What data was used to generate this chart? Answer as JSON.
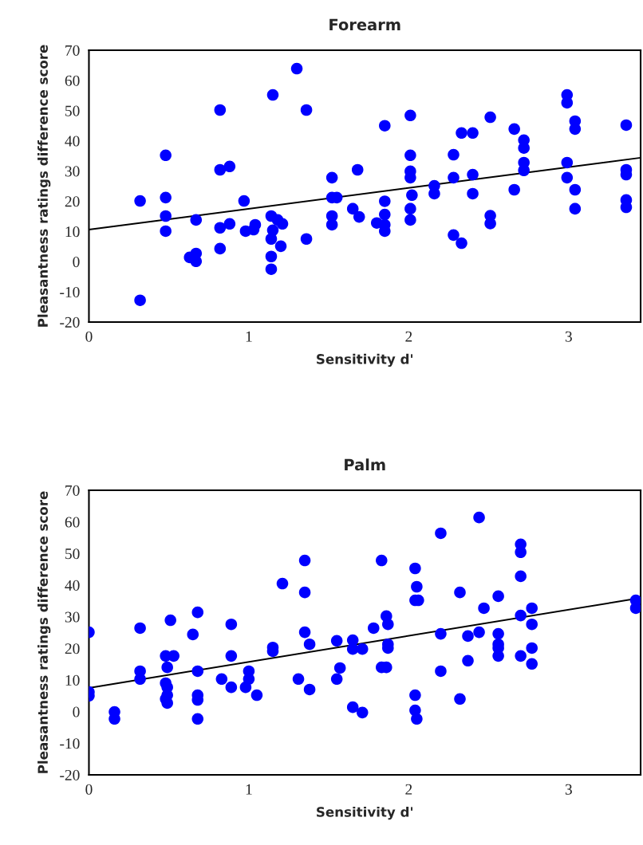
{
  "chart_data": [
    {
      "type": "scatter",
      "title": "Forearm",
      "xlabel": "Sensitivity d'",
      "ylabel": "Pleasantness ratings difference score",
      "xlim": [
        0,
        3.45
      ],
      "xticks": [
        0,
        1,
        2,
        3
      ],
      "ylim": [
        -20,
        70
      ],
      "yticks": [
        -20,
        -10,
        0,
        10,
        20,
        30,
        40,
        50,
        60,
        70
      ],
      "series": [
        {
          "marker": "circle",
          "color": "#0000ff",
          "x": [
            0.32,
            0.32,
            0.48,
            0.48,
            0.48,
            0.48,
            0.63,
            0.67,
            0.67,
            0.67,
            0.82,
            0.82,
            0.88,
            0.82,
            0.88,
            0.82,
            0.97,
            0.98,
            1.04,
            1.03,
            1.15,
            1.3,
            1.36,
            1.14,
            1.18,
            1.21,
            1.15,
            1.14,
            1.2,
            1.14,
            1.14,
            1.36,
            1.52,
            1.52,
            1.55,
            1.52,
            1.52,
            1.68,
            1.65,
            1.69,
            1.85,
            1.85,
            1.85,
            1.8,
            1.85,
            1.85,
            2.01,
            2.01,
            2.01,
            2.01,
            2.02,
            2.01,
            2.01,
            2.16,
            2.16,
            2.28,
            2.28,
            2.28,
            2.33,
            2.33,
            2.4,
            2.4,
            2.4,
            2.51,
            2.51,
            2.51,
            2.66,
            2.66,
            2.72,
            2.72,
            2.72,
            2.72,
            2.99,
            2.99,
            2.99,
            2.99,
            3.04,
            3.04,
            3.04,
            3.04,
            3.36,
            3.36,
            3.36,
            3.36,
            3.36
          ],
          "values": [
            20.1,
            -12.8,
            35.2,
            21.2,
            15.1,
            10.1,
            1.4,
            2.7,
            0.1,
            13.8,
            50.2,
            30.4,
            31.5,
            11.2,
            12.5,
            4.3,
            20.1,
            10.1,
            12.2,
            10.6,
            55.2,
            63.9,
            50.2,
            15.1,
            13.8,
            12.5,
            10.4,
            7.5,
            5.1,
            1.7,
            -2.5,
            7.5,
            27.8,
            21.2,
            21.2,
            15.1,
            12.2,
            30.4,
            17.5,
            14.8,
            45,
            20,
            15.6,
            12.8,
            12.2,
            10.1,
            48.4,
            35.2,
            29.9,
            27.8,
            22,
            17.5,
            13.8,
            25.1,
            22.5,
            35.4,
            27.8,
            8.8,
            6.1,
            42.6,
            42.6,
            28.8,
            22.5,
            47.8,
            15.2,
            12.6,
            43.9,
            23.8,
            40.2,
            37.6,
            32.8,
            30.2,
            55.2,
            52.6,
            32.8,
            27.8,
            46.5,
            43.9,
            23.8,
            17.5,
            45.2,
            30.4,
            28.8,
            20.4,
            18
          ]
        },
        {
          "type": "line",
          "marker": "none",
          "color": "#000000",
          "x": [
            0,
            3.45
          ],
          "values": [
            10.6,
            34.4
          ]
        }
      ]
    },
    {
      "type": "scatter",
      "title": "Palm",
      "xlabel": "Sensitivity d'",
      "ylabel": "Pleasantness ratings difference score",
      "xlim": [
        0,
        3.45
      ],
      "xticks": [
        0,
        1,
        2,
        3
      ],
      "ylim": [
        -20,
        70
      ],
      "yticks": [
        -20,
        -10,
        0,
        10,
        20,
        30,
        40,
        50,
        60,
        70
      ],
      "series": [
        {
          "marker": "circle",
          "color": "#0000ff",
          "x": [
            0,
            0,
            0,
            0.16,
            0.16,
            0.32,
            0.32,
            0.32,
            0.51,
            0.48,
            0.53,
            0.49,
            0.48,
            0.49,
            0.49,
            0.48,
            0.49,
            0.68,
            0.65,
            0.68,
            0.68,
            0.68,
            0.68,
            0.89,
            0.89,
            0.83,
            0.89,
            1.0,
            1.0,
            0.98,
            1.05,
            1.15,
            1.15,
            1.21,
            1.31,
            1.35,
            1.35,
            1.35,
            1.38,
            1.38,
            1.55,
            1.57,
            1.55,
            1.65,
            1.65,
            1.71,
            1.65,
            1.71,
            1.78,
            1.83,
            1.86,
            1.87,
            1.87,
            1.87,
            1.83,
            1.86,
            2.04,
            2.05,
            2.04,
            2.06,
            2.2,
            2.2,
            2.2,
            2.04,
            2.04,
            2.05,
            2.32,
            2.32,
            2.37,
            2.37,
            2.44,
            2.44,
            2.47,
            2.56,
            2.56,
            2.56,
            2.56,
            2.56,
            2.7,
            2.7,
            2.7,
            2.7,
            2.7,
            2.77,
            2.77,
            2.77,
            2.77,
            3.42,
            3.42
          ],
          "values": [
            25.1,
            6.2,
            5.0,
            -0.1,
            -2.3,
            26.4,
            12.8,
            10.3,
            28.9,
            17.6,
            17.6,
            14.0,
            9.0,
            7.7,
            5.2,
            4.0,
            2.7,
            31.4,
            24.4,
            12.8,
            5.2,
            3.7,
            -2.3,
            27.6,
            17.6,
            10.3,
            7.7,
            12.8,
            10.3,
            7.7,
            5.2,
            20.3,
            19.1,
            40.5,
            10.3,
            47.8,
            37.7,
            25.1,
            21.3,
            7.0,
            22.4,
            13.8,
            10.3,
            22.6,
            19.8,
            19.8,
            1.4,
            -0.3,
            26.4,
            47.8,
            30.2,
            27.6,
            21.3,
            20.1,
            14.0,
            14.0,
            45.3,
            39.5,
            35.2,
            35.2,
            56.4,
            24.6,
            12.8,
            5.2,
            0.4,
            -2.3,
            37.7,
            4.0,
            23.9,
            16.1,
            25.1,
            61.4,
            32.7,
            36.5,
            24.6,
            21.3,
            20.1,
            17.6,
            52.9,
            50.4,
            42.8,
            30.4,
            17.6,
            32.7,
            27.6,
            20.1,
            15.1,
            35.2,
            32.7
          ]
        },
        {
          "type": "line",
          "marker": "none",
          "color": "#000000",
          "x": [
            0,
            3.42
          ],
          "values": [
            7.5,
            35.7
          ]
        }
      ]
    }
  ]
}
